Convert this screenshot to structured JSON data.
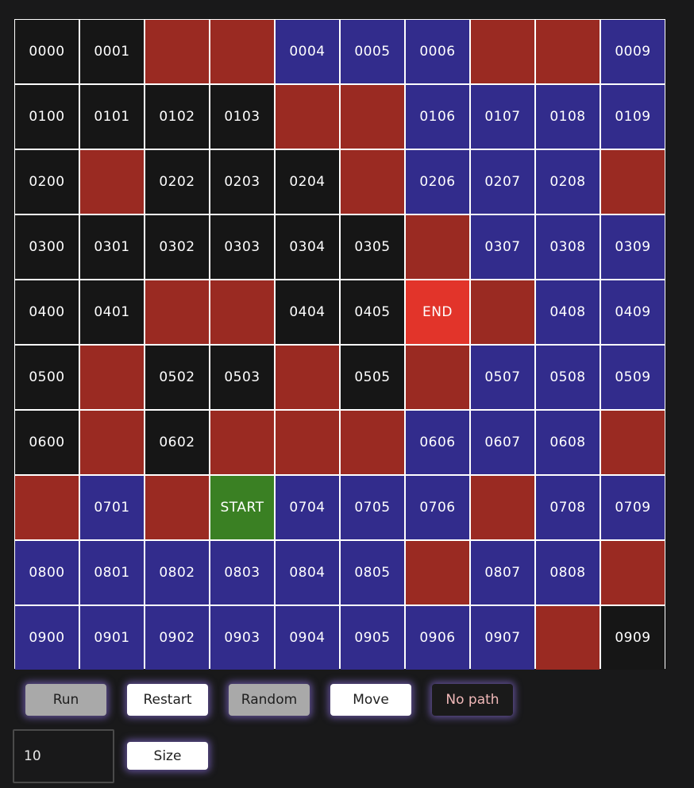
{
  "grid": {
    "rows": [
      [
        {
          "t": "dark",
          "l": "0000"
        },
        {
          "t": "dark",
          "l": "0001"
        },
        {
          "t": "wall",
          "l": ""
        },
        {
          "t": "wall",
          "l": ""
        },
        {
          "t": "blue",
          "l": "0004"
        },
        {
          "t": "blue",
          "l": "0005"
        },
        {
          "t": "blue",
          "l": "0006"
        },
        {
          "t": "wall",
          "l": ""
        },
        {
          "t": "wall",
          "l": ""
        },
        {
          "t": "blue",
          "l": "0009"
        }
      ],
      [
        {
          "t": "dark",
          "l": "0100"
        },
        {
          "t": "dark",
          "l": "0101"
        },
        {
          "t": "dark",
          "l": "0102"
        },
        {
          "t": "dark",
          "l": "0103"
        },
        {
          "t": "wall",
          "l": ""
        },
        {
          "t": "wall",
          "l": ""
        },
        {
          "t": "blue",
          "l": "0106"
        },
        {
          "t": "blue",
          "l": "0107"
        },
        {
          "t": "blue",
          "l": "0108"
        },
        {
          "t": "blue",
          "l": "0109"
        }
      ],
      [
        {
          "t": "dark",
          "l": "0200"
        },
        {
          "t": "wall",
          "l": ""
        },
        {
          "t": "dark",
          "l": "0202"
        },
        {
          "t": "dark",
          "l": "0203"
        },
        {
          "t": "dark",
          "l": "0204"
        },
        {
          "t": "wall",
          "l": ""
        },
        {
          "t": "blue",
          "l": "0206"
        },
        {
          "t": "blue",
          "l": "0207"
        },
        {
          "t": "blue",
          "l": "0208"
        },
        {
          "t": "wall",
          "l": ""
        }
      ],
      [
        {
          "t": "dark",
          "l": "0300"
        },
        {
          "t": "dark",
          "l": "0301"
        },
        {
          "t": "dark",
          "l": "0302"
        },
        {
          "t": "dark",
          "l": "0303"
        },
        {
          "t": "dark",
          "l": "0304"
        },
        {
          "t": "dark",
          "l": "0305"
        },
        {
          "t": "wall",
          "l": ""
        },
        {
          "t": "blue",
          "l": "0307"
        },
        {
          "t": "blue",
          "l": "0308"
        },
        {
          "t": "blue",
          "l": "0309"
        }
      ],
      [
        {
          "t": "dark",
          "l": "0400"
        },
        {
          "t": "dark",
          "l": "0401"
        },
        {
          "t": "wall",
          "l": ""
        },
        {
          "t": "wall",
          "l": ""
        },
        {
          "t": "dark",
          "l": "0404"
        },
        {
          "t": "dark",
          "l": "0405"
        },
        {
          "t": "end",
          "l": "END"
        },
        {
          "t": "wall",
          "l": ""
        },
        {
          "t": "blue",
          "l": "0408"
        },
        {
          "t": "blue",
          "l": "0409"
        }
      ],
      [
        {
          "t": "dark",
          "l": "0500"
        },
        {
          "t": "wall",
          "l": ""
        },
        {
          "t": "dark",
          "l": "0502"
        },
        {
          "t": "dark",
          "l": "0503"
        },
        {
          "t": "wall",
          "l": ""
        },
        {
          "t": "dark",
          "l": "0505"
        },
        {
          "t": "wall",
          "l": ""
        },
        {
          "t": "blue",
          "l": "0507"
        },
        {
          "t": "blue",
          "l": "0508"
        },
        {
          "t": "blue",
          "l": "0509"
        }
      ],
      [
        {
          "t": "dark",
          "l": "0600"
        },
        {
          "t": "wall",
          "l": ""
        },
        {
          "t": "dark",
          "l": "0602"
        },
        {
          "t": "wall",
          "l": ""
        },
        {
          "t": "wall",
          "l": ""
        },
        {
          "t": "wall",
          "l": ""
        },
        {
          "t": "blue",
          "l": "0606"
        },
        {
          "t": "blue",
          "l": "0607"
        },
        {
          "t": "blue",
          "l": "0608"
        },
        {
          "t": "wall",
          "l": ""
        }
      ],
      [
        {
          "t": "wall",
          "l": ""
        },
        {
          "t": "blue",
          "l": "0701"
        },
        {
          "t": "wall",
          "l": ""
        },
        {
          "t": "start",
          "l": "START"
        },
        {
          "t": "blue",
          "l": "0704"
        },
        {
          "t": "blue",
          "l": "0705"
        },
        {
          "t": "blue",
          "l": "0706"
        },
        {
          "t": "wall",
          "l": ""
        },
        {
          "t": "blue",
          "l": "0708"
        },
        {
          "t": "blue",
          "l": "0709"
        }
      ],
      [
        {
          "t": "blue",
          "l": "0800"
        },
        {
          "t": "blue",
          "l": "0801"
        },
        {
          "t": "blue",
          "l": "0802"
        },
        {
          "t": "blue",
          "l": "0803"
        },
        {
          "t": "blue",
          "l": "0804"
        },
        {
          "t": "blue",
          "l": "0805"
        },
        {
          "t": "wall",
          "l": ""
        },
        {
          "t": "blue",
          "l": "0807"
        },
        {
          "t": "blue",
          "l": "0808"
        },
        {
          "t": "wall",
          "l": ""
        }
      ],
      [
        {
          "t": "blue",
          "l": "0900"
        },
        {
          "t": "blue",
          "l": "0901"
        },
        {
          "t": "blue",
          "l": "0902"
        },
        {
          "t": "blue",
          "l": "0903"
        },
        {
          "t": "blue",
          "l": "0904"
        },
        {
          "t": "blue",
          "l": "0905"
        },
        {
          "t": "blue",
          "l": "0906"
        },
        {
          "t": "blue",
          "l": "0907"
        },
        {
          "t": "wall",
          "l": ""
        },
        {
          "t": "dark",
          "l": "0909"
        }
      ]
    ]
  },
  "controls": {
    "run_label": "Run",
    "restart_label": "Restart",
    "random_label": "Random",
    "move_label": "Move",
    "status_label": "No path",
    "size_value": "10",
    "size_label": "Size"
  },
  "colors": {
    "background": "#19191a",
    "unvisited": "#161616",
    "wall": "#9a2a22",
    "visited": "#322c8c",
    "start": "#3a8023",
    "end": "#e2342a",
    "button_glow": "#9678f0"
  }
}
